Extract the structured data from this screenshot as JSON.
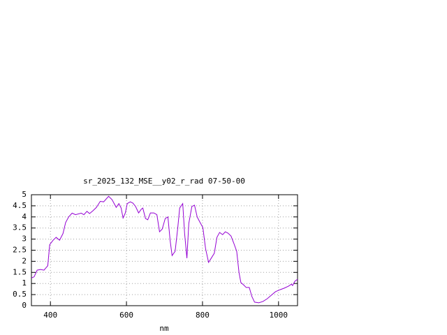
{
  "chart_data": {
    "type": "line",
    "title": "sr_2025_132_MSE__y02_r_rad 07-50-00",
    "xlabel": "nm",
    "x": [
      350,
      357,
      365,
      374,
      383,
      393,
      398,
      407,
      415,
      424,
      433,
      440,
      448,
      457,
      466,
      481,
      488,
      496,
      503,
      512,
      521,
      531,
      540,
      553,
      562,
      573,
      580,
      586,
      591,
      597,
      602,
      610,
      617,
      624,
      632,
      639,
      643,
      650,
      656,
      663,
      672,
      680,
      687,
      694,
      702,
      709,
      715,
      720,
      728,
      735,
      740,
      748,
      753,
      759,
      764,
      772,
      779,
      786,
      793,
      801,
      808,
      816,
      823,
      831,
      838,
      845,
      853,
      860,
      867,
      875,
      882,
      890,
      896,
      901,
      908,
      915,
      923,
      930,
      937,
      948,
      959,
      970,
      981,
      992,
      1004,
      1015,
      1026,
      1034,
      1037,
      1043,
      1050
    ],
    "values": [
      1.25,
      1.3,
      1.6,
      1.63,
      1.6,
      1.8,
      2.75,
      2.95,
      3.08,
      2.95,
      3.25,
      3.75,
      4.0,
      4.17,
      4.1,
      4.17,
      4.1,
      4.25,
      4.15,
      4.28,
      4.43,
      4.7,
      4.68,
      4.93,
      4.78,
      4.43,
      4.6,
      4.4,
      3.95,
      4.18,
      4.6,
      4.68,
      4.62,
      4.47,
      4.18,
      4.35,
      4.4,
      3.93,
      3.87,
      4.18,
      4.18,
      4.1,
      3.33,
      3.45,
      3.93,
      4.0,
      2.92,
      2.26,
      2.45,
      3.52,
      4.4,
      4.6,
      3.24,
      2.14,
      3.71,
      4.47,
      4.53,
      4.0,
      3.77,
      3.52,
      2.58,
      1.95,
      2.14,
      2.36,
      3.08,
      3.3,
      3.2,
      3.33,
      3.27,
      3.14,
      2.83,
      2.45,
      1.5,
      1.04,
      0.94,
      0.82,
      0.82,
      0.41,
      0.16,
      0.13,
      0.19,
      0.31,
      0.47,
      0.63,
      0.72,
      0.79,
      0.88,
      0.97,
      0.91,
      1.1,
      1.19
    ],
    "color": "#9400d3",
    "xlim": [
      350,
      1050
    ],
    "xticks": [
      400,
      600,
      800,
      1000
    ],
    "ylim": [
      0,
      5
    ],
    "yticks": [
      0,
      0.5,
      1,
      1.5,
      2,
      2.5,
      3,
      3.5,
      4,
      4.5,
      5
    ],
    "grid": true
  }
}
